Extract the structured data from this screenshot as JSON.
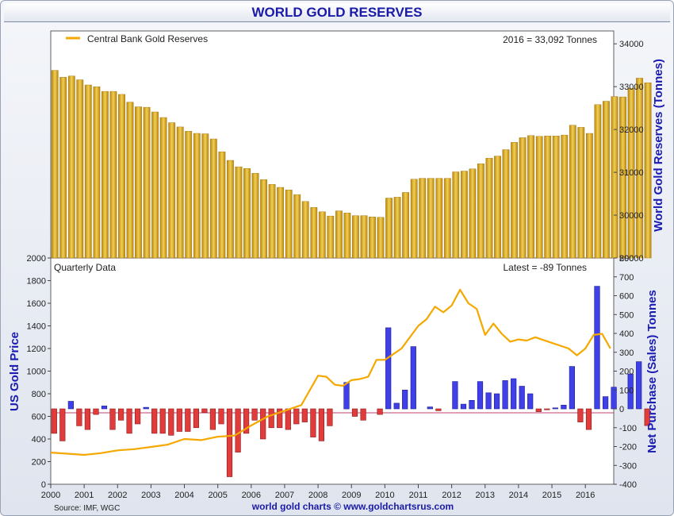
{
  "title": "WORLD GOLD RESERVES",
  "footer": {
    "source": "Source: IMF, WGC",
    "brand": "world gold charts © www.goldchartsrus.com"
  },
  "colors": {
    "title": "#1a1aa8",
    "reserves_bar": "#d9a520",
    "gold_line": "#f4a800",
    "purchase_bar": "#4040e8",
    "sale_bar": "#e03c3c"
  },
  "chart_data": [
    {
      "type": "bar",
      "legend": "Central Bank Gold Reserves",
      "annotation": "2016 = 33,092 Tonnes",
      "ylabel": "World Gold Reserves (Tonnes)",
      "ylim": [
        29000,
        34300
      ],
      "yticks": [
        29000,
        30000,
        31000,
        32000,
        33000,
        34000
      ],
      "x_start": 2000.0,
      "x_step": 0.25,
      "values": [
        33380,
        33220,
        33250,
        33160,
        33040,
        33000,
        32890,
        32890,
        32820,
        32640,
        32530,
        32520,
        32410,
        32280,
        32160,
        32060,
        31960,
        31910,
        31900,
        31780,
        31480,
        31280,
        31130,
        31090,
        30980,
        30830,
        30720,
        30650,
        30590,
        30480,
        30320,
        30180,
        30080,
        29980,
        30100,
        30050,
        29990,
        29990,
        29960,
        29950,
        30400,
        30420,
        30530,
        30840,
        30860,
        30860,
        30860,
        30860,
        31010,
        31030,
        31080,
        31200,
        31330,
        31380,
        31530,
        31700,
        31810,
        31860,
        31840,
        31850,
        31850,
        31870,
        32100,
        32050,
        31910,
        32580,
        32660,
        32770,
        32760,
        32960,
        33200,
        33092
      ]
    },
    {
      "type": "bar+line",
      "title": "Quarterly Data",
      "annotation": "Latest = -89 Tonnes",
      "ylabel_left": "US Gold Price",
      "ylabel_right": "Net Purchase (Sales) Tonnes",
      "ylim_left": [
        0,
        2000
      ],
      "yticks_left": [
        0,
        200,
        400,
        600,
        800,
        1000,
        1200,
        1400,
        1600,
        1800,
        2000
      ],
      "ylim_right": [
        -400,
        800
      ],
      "yticks_right": [
        -400,
        -300,
        -200,
        -100,
        0,
        100,
        200,
        300,
        400,
        500,
        600,
        700,
        800
      ],
      "xlim": [
        2000,
        2016.85
      ],
      "xticks": [
        "2000",
        "2001",
        "2002",
        "2003",
        "2004",
        "2005",
        "2006",
        "2007",
        "2008",
        "2009",
        "2010",
        "2011",
        "2012",
        "2013",
        "2014",
        "2015",
        "2016"
      ],
      "x_start": 2000.0,
      "x_step": 0.25,
      "net_purchases": [
        -130,
        -170,
        40,
        -90,
        -110,
        -30,
        15,
        -110,
        -60,
        -130,
        -80,
        8,
        -130,
        -130,
        -140,
        -120,
        -120,
        -100,
        -20,
        -110,
        -80,
        -360,
        -230,
        -130,
        -60,
        -160,
        -100,
        -100,
        -110,
        -80,
        -70,
        -150,
        -170,
        -90,
        0,
        140,
        -40,
        -60,
        0,
        -30,
        430,
        30,
        100,
        330,
        0,
        10,
        -10,
        0,
        145,
        25,
        45,
        145,
        85,
        80,
        150,
        160,
        120,
        80,
        -15,
        -5,
        5,
        20,
        225,
        -70,
        -110,
        650,
        65,
        115,
        0,
        185,
        250,
        -89
      ],
      "gold_price": {
        "x": [
          2000.0,
          2000.5,
          2001.0,
          2001.5,
          2002.0,
          2002.5,
          2003.0,
          2003.5,
          2004.0,
          2004.5,
          2005.0,
          2005.5,
          2006.0,
          2006.5,
          2007.0,
          2007.5,
          2008.0,
          2008.25,
          2008.5,
          2008.75,
          2009.0,
          2009.25,
          2009.5,
          2009.75,
          2010.0,
          2010.5,
          2011.0,
          2011.25,
          2011.5,
          2011.75,
          2012.0,
          2012.25,
          2012.5,
          2012.75,
          2013.0,
          2013.25,
          2013.5,
          2013.75,
          2014.0,
          2014.25,
          2014.5,
          2015.0,
          2015.5,
          2015.75,
          2016.0,
          2016.25,
          2016.5,
          2016.75
        ],
        "y": [
          280,
          270,
          260,
          275,
          300,
          310,
          330,
          350,
          400,
          390,
          420,
          430,
          520,
          600,
          650,
          700,
          960,
          950,
          880,
          870,
          920,
          930,
          950,
          1100,
          1100,
          1200,
          1400,
          1460,
          1570,
          1520,
          1580,
          1720,
          1600,
          1550,
          1320,
          1420,
          1330,
          1260,
          1280,
          1270,
          1300,
          1250,
          1200,
          1140,
          1200,
          1320,
          1330,
          1200
        ]
      }
    }
  ]
}
